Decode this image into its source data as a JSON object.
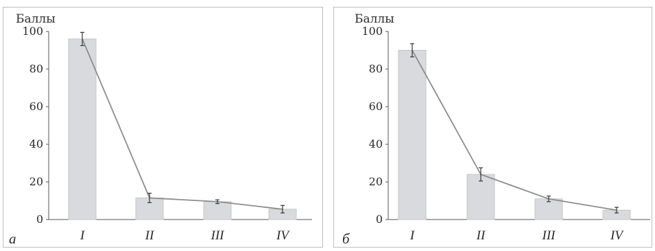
{
  "chart_data": [
    {
      "panel_label": "а",
      "type": "bar",
      "ylabel": "Баллы",
      "ylim": [
        0,
        100
      ],
      "yticks": [
        "0",
        "20",
        "40",
        "60",
        "80",
        "100"
      ],
      "categories": [
        "I",
        "II",
        "III",
        "IV"
      ],
      "values": [
        96,
        11.5,
        9.5,
        5.5
      ],
      "errors": [
        3.5,
        2.5,
        1.0,
        2.0
      ],
      "overlay_line": true,
      "bar_color": "#d9dadd",
      "line_color": "#8c8c8c"
    },
    {
      "panel_label": "б",
      "type": "bar",
      "ylabel": "Баллы",
      "ylim": [
        0,
        100
      ],
      "yticks": [
        "0",
        "20",
        "40",
        "60",
        "80",
        "100"
      ],
      "categories": [
        "I",
        "II",
        "III",
        "IV"
      ],
      "values": [
        90,
        24,
        11,
        5
      ],
      "errors": [
        3.5,
        3.5,
        1.5,
        1.5
      ],
      "overlay_line": true,
      "bar_color": "#d9dadd",
      "line_color": "#8c8c8c"
    }
  ]
}
